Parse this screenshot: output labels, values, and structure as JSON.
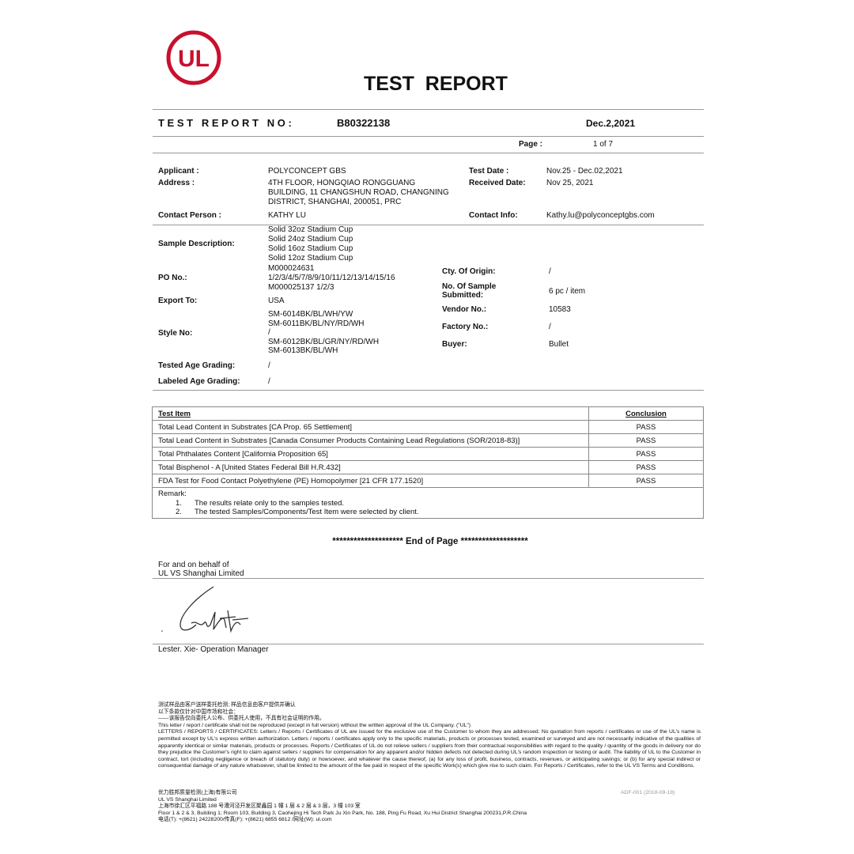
{
  "logo": {
    "text": "UL",
    "color": "#c8102e"
  },
  "title": "TEST  REPORT",
  "report_no_label": "T E S T   R E P O R T   N O :",
  "report_no": "B80322138",
  "date": "Dec.2,2021",
  "page_label": "Page :",
  "page_value": "1 of 7",
  "applicant": {
    "label": "Applicant :",
    "value": "POLYCONCEPT GBS"
  },
  "address": {
    "label": "Address :",
    "lines": [
      "4TH FLOOR, HONGQIAO RONGGUANG",
      "BUILDING, 11 CHANGSHUN ROAD, CHANGNING",
      "DISTRICT, SHANGHAI, 200051, PRC"
    ]
  },
  "test_date": {
    "label": "Test Date :",
    "value": "Nov.25 - Dec.02,2021"
  },
  "received_date": {
    "label": "Received Date:",
    "value": "Nov 25, 2021"
  },
  "contact_person": {
    "label": "Contact Person :",
    "value": "KATHY LU"
  },
  "contact_info": {
    "label": "Contact Info:",
    "value": "Kathy.lu@polyconceptgbs.com"
  },
  "sample_description": {
    "label": "Sample Description:",
    "lines": [
      "Solid 32oz Stadium Cup",
      "Solid 24oz Stadium Cup",
      "Solid 16oz Stadium Cup",
      "Solid 12oz Stadium Cup"
    ]
  },
  "po_no": {
    "label": "PO No.:",
    "lines": [
      "M000024631",
      "1/2/3/4/5/7/8/9/10/11/12/13/14/15/16",
      "M000025137  1/2/3"
    ]
  },
  "export_to": {
    "label": "Export To:",
    "value": "USA"
  },
  "style_no": {
    "label": "Style No:",
    "lines": [
      "SM-6014BK/BL/WH/YW",
      "SM-6011BK/BL/NY/RD/WH",
      "/",
      "SM-6012BK/BL/GR/NY/RD/WH",
      "SM-6013BK/BL/WH"
    ]
  },
  "tested_age": {
    "label": "Tested Age Grading:",
    "value": "/"
  },
  "labeled_age": {
    "label": "Labeled Age Grading:",
    "value": "/"
  },
  "origin": {
    "label": "Cty. Of Origin:",
    "value": "/"
  },
  "num_sample": {
    "label1": "No. Of Sample",
    "label2": "Submitted:",
    "value": "6 pc / item"
  },
  "vendor": {
    "label": "Vendor No.:",
    "value": "10583"
  },
  "factory": {
    "label": "Factory No.:",
    "value": "/"
  },
  "buyer": {
    "label": "Buyer:",
    "value": "Bullet"
  },
  "results": {
    "headers": [
      "Test Item",
      "Conclusion"
    ],
    "rows": [
      [
        "Total Lead Content in Substrates [CA Prop. 65 Settlement]",
        "PASS"
      ],
      [
        "Total Lead Content in Substrates [Canada Consumer Products Containing Lead Regulations (SOR/2018-83)]",
        "PASS"
      ],
      [
        "Total Phthalates Content [California Proposition 65]",
        "PASS"
      ],
      [
        "Total Bisphenol - A [United States Federal Bill H.R.432]",
        "PASS"
      ],
      [
        "FDA Test for Food Contact Polyethylene (PE) Homopolymer [21 CFR 177.1520]",
        "PASS"
      ]
    ],
    "remark_label": "Remark:",
    "remarks": [
      [
        "1.",
        "The results relate only to the samples tested."
      ],
      [
        "2.",
        "The tested Samples/Components/Test Item were selected by client."
      ]
    ]
  },
  "end_of_page": "******************** End of Page *******************",
  "behalf1": "For and on behalf of",
  "behalf2": "UL VS Shanghai Limited",
  "signer": "Lester. Xie- Operation Manager",
  "fine_print": [
    "测试样品由客户送样委托检测; 样品信息由客户提供并确认",
    "以下条款仅针对中国市场和社会：",
    "——该报告仅向委托人公布、供委托人使用，不具有社会证明的作用。",
    "This letter / report / certificate shall not be reproduced (except in full version) without the written approval of the UL Company. (\"UL\")",
    "LETTERS / REPORTS / CERTIFICATES: Letters / Reports / Certificates of UL are issued for the exclusive use of the Customer to whom they are addressed. No quotation from reports / certificates or use of the UL's name is permitted except by UL's express written authorization. Letters / reports / certificates apply only to the specific materials, products or processes tested, examined or surveyed and are not necessarily indicative of the qualities of apparently identical or similar materials, products or processes. Reports / Certificates of UL do not relieve sellers / suppliers from their contractual responsibilities with regard to the quality / quantity of the goods in delivery nor do they prejudice the Customer's right to claim against sellers / suppliers for compensation for any apparent and/or hidden defects not detected during UL's random inspection or testing or audit. The liability of UL to the Customer in contract, tort (including negligence or breach of statutory duty) or howsoever, and whatever the cause thereof, (a) for any loss of profit, business, contracts, revenues, or anticipating savings; or (b) for any special indirect or consequential damage of any nature whatsoever, shall be limited to the amount of the fee paid in respect of the specific Work(s) which give rise to such claim. For Reports / Certificates, refer to the UL VS Terms and Conditions."
  ],
  "footer": [
    "优力胜邦质量检测(上海)有限公司",
    "UL VS Shanghai Limited",
    "上海市徐汇区平福路 188 号漕河泾开发区聚鑫园 1 幢 1 层 & 2 层 & 3 层，3 幢 103 室",
    "Floor 1 & 2 & 3, Building 1; Room 103, Building 3, Caohejing Hi Tech Park Ju Xin Park, No. 188, Ping Fu Road, Xu Hui District Shanghai 200231,P.R.China",
    "电话(T): +(8621) 24228200/传真(F): +(8621) 6855 6812 /网址(W): ul.com"
  ],
  "form_code": "ADF-001 (2018-09-18)"
}
